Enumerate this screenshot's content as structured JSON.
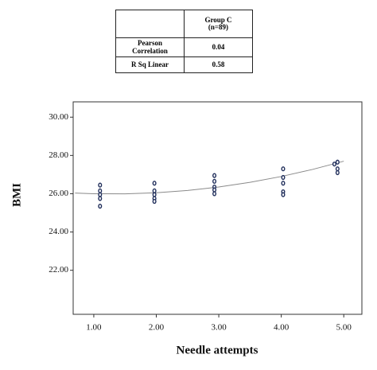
{
  "table": {
    "column_header": "Group C\n(n=89)",
    "rows": [
      [
        "Pearson\nCorrelation",
        "0.04"
      ],
      [
        "R Sq Linear",
        "0.58"
      ]
    ]
  },
  "chart_data": {
    "type": "scatter",
    "x_label": "Needle attempts",
    "y_label": "BMI",
    "xlim": [
      0.67,
      5.29
    ],
    "ylim": [
      19.7,
      30.8
    ],
    "xticks": [
      {
        "value": 1,
        "label": "1.00"
      },
      {
        "value": 2,
        "label": "2.00"
      },
      {
        "value": 3,
        "label": "3.00"
      },
      {
        "value": 4,
        "label": "4.00"
      },
      {
        "value": 5,
        "label": "5.00"
      }
    ],
    "yticks": [
      {
        "value": 22,
        "label": "22.00"
      },
      {
        "value": 24,
        "label": "24.00"
      },
      {
        "value": 26,
        "label": "26.00"
      },
      {
        "value": 28,
        "label": "28.00"
      },
      {
        "value": 30,
        "label": "30.00"
      }
    ],
    "series": [
      {
        "type": "scatter",
        "color": "#1f2d5a",
        "x": [
          1.1,
          1.1,
          1.1,
          1.1,
          1.1,
          1.97,
          1.97,
          1.97,
          1.97,
          1.97,
          2.93,
          2.93,
          2.93,
          2.93,
          2.93,
          4.03,
          4.03,
          4.03,
          4.03,
          4.03,
          4.85,
          4.9,
          4.9,
          4.9
        ],
        "values": [
          26.45,
          26.15,
          25.95,
          25.75,
          25.35,
          26.55,
          26.15,
          25.95,
          25.75,
          25.6,
          26.95,
          26.65,
          26.35,
          26.2,
          26.0,
          27.3,
          26.85,
          26.55,
          26.1,
          25.95,
          27.55,
          27.65,
          27.3,
          27.1
        ]
      },
      {
        "type": "line",
        "color": "#8a8a8a",
        "x": [
          0.7,
          1,
          1.5,
          2,
          2.5,
          3,
          3.5,
          4,
          4.5,
          5
        ],
        "values": [
          26.036,
          26.0,
          25.994,
          26.05,
          26.169,
          26.35,
          26.594,
          26.9,
          27.269,
          27.7
        ]
      }
    ]
  }
}
